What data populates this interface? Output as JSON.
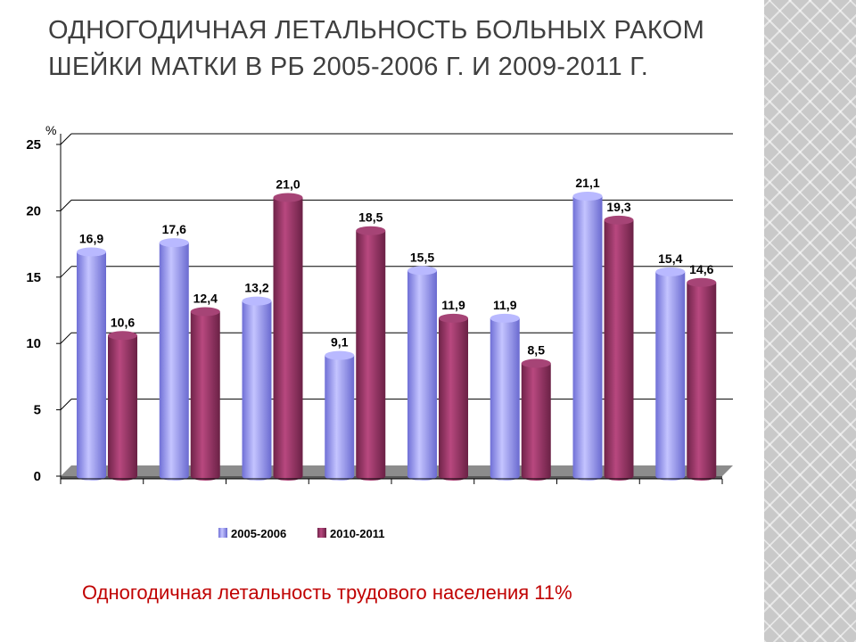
{
  "slide": {
    "title": "Одногодичная летальность больных раком шейки матки в РБ 2005-2006 г. и 2009-2011 г.",
    "footnote": "Одногодичная летальность трудового населения 11%"
  },
  "chart_data": {
    "type": "bar",
    "ylabel": "%",
    "ylim": [
      0,
      25
    ],
    "yticks": [
      "0",
      "5",
      "10",
      "15",
      "20",
      "25"
    ],
    "grid": true,
    "legend_position": "bottom",
    "categories": [
      "",
      "",
      "",
      "",
      "",
      "",
      "",
      ""
    ],
    "series": [
      {
        "name": "2005-2006",
        "color": "#9999ff",
        "values": [
          16.9,
          17.6,
          13.2,
          9.1,
          15.5,
          11.9,
          21.1,
          15.4
        ],
        "labels": [
          "16,9",
          "17,6",
          "13,2",
          "9,1",
          "15,5",
          "11,9",
          "21,1",
          "15,4"
        ]
      },
      {
        "name": "2010-2011",
        "color": "#993366",
        "values": [
          10.6,
          12.4,
          21.0,
          18.5,
          11.9,
          8.5,
          19.3,
          14.6
        ],
        "labels": [
          "10,6",
          "12,4",
          "21,0",
          "18,5",
          "11,9",
          "8,5",
          "19,3",
          "14,6"
        ]
      }
    ]
  }
}
